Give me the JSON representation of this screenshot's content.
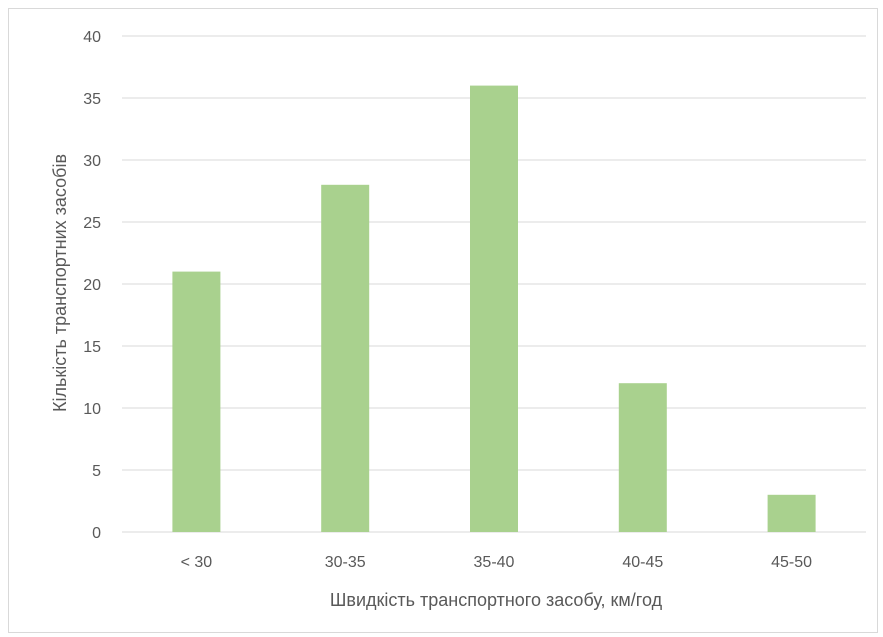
{
  "chart_data": {
    "type": "bar",
    "title": "",
    "xlabel": "Швидкість транспортного засобу, км/год",
    "ylabel": "Кількість транспортних засобів",
    "categories": [
      "< 30",
      "30-35",
      "35-40",
      "40-45",
      "45-50"
    ],
    "values": [
      21,
      28,
      36,
      12,
      3
    ],
    "ylim": [
      0,
      40
    ],
    "yticks": [
      0,
      5,
      10,
      15,
      20,
      25,
      30,
      35,
      40
    ],
    "grid": true,
    "legend": false,
    "colors": {
      "bar": "#a9d18e",
      "grid": "#d9d9d9",
      "text": "#595959"
    }
  }
}
